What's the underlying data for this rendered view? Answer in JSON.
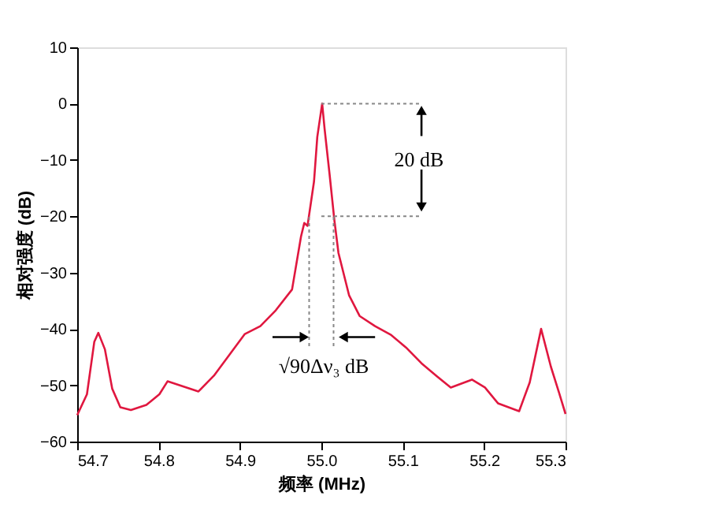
{
  "chart_data": {
    "type": "line",
    "xlabel": "频率 (MHz)",
    "ylabel": "相对强度 (dB)",
    "xlim": [
      54.7,
      55.3
    ],
    "xticks": [
      54.7,
      54.8,
      54.9,
      {
        "value": 55.0,
        "label": "55.0"
      },
      55.1,
      55.2,
      55.3
    ],
    "ylim": [
      -60,
      10
    ],
    "yticks": [
      -60,
      -50,
      -40,
      -30,
      -20,
      -10,
      0,
      10
    ],
    "grid": false,
    "line_style": "solid",
    "series": [
      {
        "color": "#e0173f",
        "x": [
          54.7,
          54.712,
          54.721,
          54.726,
          54.734,
          54.743,
          54.753,
          54.766,
          54.785,
          54.801,
          54.811,
          54.83,
          54.849,
          54.868,
          54.887,
          54.906,
          54.925,
          54.944,
          54.964,
          54.975,
          54.979,
          54.983,
          54.991,
          54.995,
          55.001,
          55.004,
          55.01,
          55.016,
          55.021,
          55.034,
          55.047,
          55.066,
          55.085,
          55.104,
          55.123,
          55.142,
          55.159,
          55.185,
          55.201,
          55.217,
          55.243,
          55.256,
          55.27,
          55.282,
          55.292,
          55.3
        ],
        "values": [
          -55.3,
          -51.6,
          -42.3,
          -40.7,
          -43.6,
          -50.6,
          -53.9,
          -54.4,
          -53.5,
          -51.6,
          -49.3,
          -50.2,
          -51.1,
          -48.3,
          -44.6,
          -40.9,
          -39.5,
          -36.7,
          -33,
          -23.6,
          -21.2,
          -21.7,
          -13.8,
          -5.9,
          0,
          -4.5,
          -12.4,
          -20.7,
          -26.5,
          -34,
          -37.7,
          -39.5,
          -41,
          -43.3,
          -46.1,
          -48.4,
          -50.4,
          -49,
          -50.4,
          -53.2,
          -54.6,
          -49.5,
          -40,
          -46.7,
          -51.3,
          -55.1
        ]
      }
    ],
    "ref_lines": [
      {
        "axis": "y",
        "value": 0,
        "color": "#888888",
        "line_style": "dotted"
      },
      {
        "axis": "y",
        "value": -20,
        "color": "#888888",
        "line_style": "dotted"
      },
      {
        "axis": "x",
        "value": 54.985,
        "color": "#888888",
        "line_style": "dotted"
      },
      {
        "axis": "x",
        "value": 55.015,
        "color": "#888888",
        "line_style": "dotted"
      }
    ],
    "annotations": [
      {
        "text": "20 dB",
        "x": 55.12,
        "y": -20
      },
      "√90Δν₃ dB"
    ]
  }
}
